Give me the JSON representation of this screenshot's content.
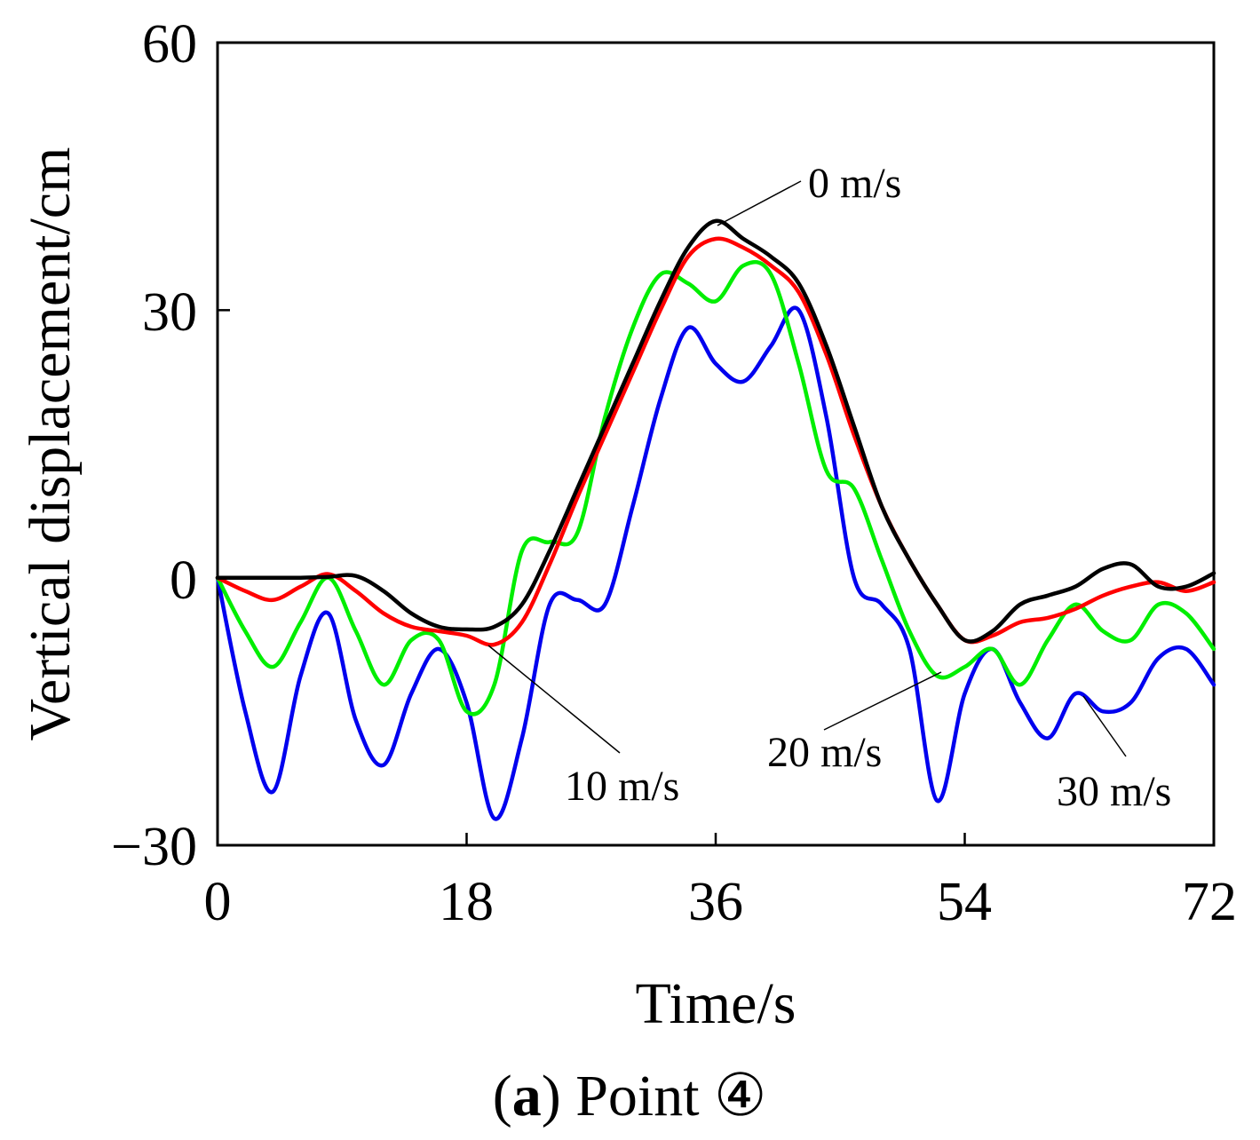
{
  "chart_data": {
    "type": "line",
    "title": "",
    "xlabel": "Time/s",
    "ylabel": "Vertical displacement/cm",
    "xlim": [
      0,
      72
    ],
    "ylim": [
      -30,
      60
    ],
    "x_ticks": [
      0,
      18,
      36,
      54,
      72
    ],
    "y_ticks": [
      -30,
      0,
      30,
      60
    ],
    "x_tick_labels": [
      "0",
      "18",
      "36",
      "54",
      "72"
    ],
    "y_tick_labels": [
      "−30",
      "0",
      "30",
      "60"
    ],
    "grid": false,
    "series": [
      {
        "name": "0 m/s",
        "color": "#000000",
        "x": [
          0,
          2,
          4,
          6,
          8,
          10,
          12,
          14,
          16,
          18,
          20,
          22,
          24,
          26,
          28,
          30,
          32,
          34,
          36,
          38,
          40,
          42,
          44,
          46,
          48,
          50,
          52,
          54,
          56,
          58,
          60,
          62,
          64,
          66,
          68,
          70,
          72
        ],
        "y": [
          0,
          0,
          0,
          0,
          0.1,
          0.2,
          -1.5,
          -4,
          -5.5,
          -5.8,
          -5.5,
          -3,
          3,
          10,
          17,
          24,
          31,
          37,
          40,
          38,
          36,
          33,
          26,
          17,
          8,
          2,
          -3,
          -7,
          -6,
          -3,
          -2,
          -1,
          1,
          1.5,
          -1,
          -1,
          0.5
        ]
      },
      {
        "name": "10 m/s",
        "color": "#ff0000",
        "x": [
          0,
          2,
          4,
          6,
          8,
          10,
          12,
          14,
          16,
          18,
          20,
          22,
          24,
          26,
          28,
          30,
          32,
          34,
          36,
          38,
          40,
          42,
          44,
          46,
          48,
          50,
          52,
          54,
          56,
          58,
          60,
          62,
          64,
          66,
          68,
          70,
          72
        ],
        "y": [
          0,
          -1.5,
          -2.5,
          -1,
          0.4,
          -1.5,
          -4,
          -5.5,
          -6,
          -6.5,
          -7.5,
          -5,
          1.5,
          9,
          16,
          23,
          30,
          36,
          38,
          37,
          35,
          32,
          25,
          16,
          8,
          2,
          -3,
          -7,
          -6.5,
          -5,
          -4.5,
          -3.5,
          -2,
          -1,
          -0.5,
          -1.5,
          -0.5
        ]
      },
      {
        "name": "20 m/s",
        "color": "#00ee00",
        "x": [
          0,
          2,
          4,
          6,
          8,
          10,
          12,
          14,
          16,
          18,
          20,
          22,
          24,
          26,
          28,
          30,
          32,
          34,
          36,
          38,
          40,
          42,
          44,
          46,
          48,
          50,
          52,
          54,
          56,
          58,
          60,
          62,
          64,
          66,
          68,
          70,
          72
        ],
        "y": [
          0,
          -6,
          -10,
          -5,
          0,
          -6,
          -12,
          -7,
          -7,
          -15,
          -12,
          3,
          4,
          5,
          18,
          28,
          34,
          33,
          31,
          35,
          34,
          24,
          12,
          10,
          2,
          -6,
          -11,
          -10,
          -8,
          -12,
          -7,
          -3,
          -6,
          -7,
          -3,
          -4,
          -8
        ]
      },
      {
        "name": "30 m/s",
        "color": "#0000ee",
        "x": [
          0,
          2,
          4,
          6,
          8,
          10,
          12,
          14,
          16,
          18,
          20,
          22,
          24,
          26,
          28,
          30,
          32,
          34,
          36,
          38,
          40,
          42,
          44,
          46,
          48,
          50,
          52,
          54,
          56,
          58,
          60,
          62,
          64,
          66,
          68,
          70,
          72
        ],
        "y": [
          0,
          -15,
          -24,
          -11,
          -4,
          -16,
          -21,
          -13,
          -8,
          -14,
          -27,
          -18,
          -3,
          -2.5,
          -3,
          8,
          20,
          28,
          24,
          22,
          26,
          30,
          18,
          0,
          -3,
          -8,
          -25,
          -13,
          -8,
          -14,
          -18,
          -13,
          -15,
          -14,
          -9,
          -8,
          -12
        ]
      }
    ],
    "annotations": [
      "0 m/s",
      "10 m/s",
      "20 m/s",
      "30 m/s"
    ]
  },
  "caption": {
    "label": "a",
    "text": "Point ④"
  }
}
